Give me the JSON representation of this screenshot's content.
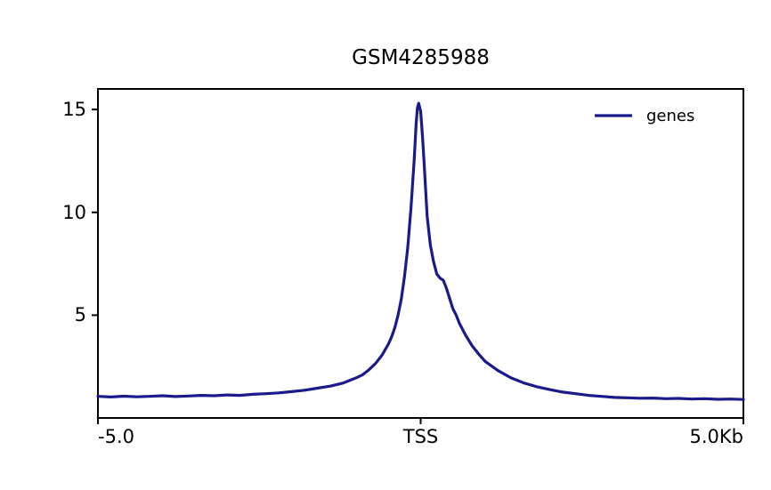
{
  "title": "GSM4285988",
  "legend": {
    "label": "genes"
  },
  "axes": {
    "y_tick_labels": [
      "5",
      "10",
      "15"
    ],
    "x_tick_labels": [
      "-5.0",
      "TSS",
      "5.0Kb"
    ]
  },
  "chart_data": {
    "type": "line",
    "title": "GSM4285988",
    "xlabel": "",
    "ylabel": "",
    "xlim": [
      -5,
      5
    ],
    "ylim": [
      0,
      16
    ],
    "x_tick_positions": [
      -5,
      0,
      5
    ],
    "x_tick_labels": [
      "-5.0",
      "TSS",
      "5.0Kb"
    ],
    "y_ticks": [
      5,
      10,
      15
    ],
    "grid": false,
    "legend_position": "upper right",
    "line_color": "#1a1a8c",
    "series": [
      {
        "name": "genes",
        "x": [
          -5.0,
          -4.8,
          -4.6,
          -4.4,
          -4.2,
          -4.0,
          -3.8,
          -3.6,
          -3.4,
          -3.2,
          -3.0,
          -2.8,
          -2.6,
          -2.4,
          -2.2,
          -2.0,
          -1.8,
          -1.6,
          -1.4,
          -1.2,
          -1.0,
          -0.9,
          -0.8,
          -0.7,
          -0.6,
          -0.5,
          -0.45,
          -0.4,
          -0.35,
          -0.3,
          -0.25,
          -0.2,
          -0.15,
          -0.1,
          -0.07,
          -0.05,
          -0.03,
          0.0,
          0.03,
          0.05,
          0.1,
          0.15,
          0.2,
          0.25,
          0.3,
          0.35,
          0.4,
          0.45,
          0.5,
          0.55,
          0.6,
          0.7,
          0.8,
          0.9,
          1.0,
          1.2,
          1.4,
          1.6,
          1.8,
          2.0,
          2.2,
          2.4,
          2.6,
          2.8,
          3.0,
          3.2,
          3.4,
          3.6,
          3.8,
          4.0,
          4.2,
          4.4,
          4.6,
          4.8,
          5.0
        ],
        "y": [
          1.05,
          1.02,
          1.06,
          1.03,
          1.05,
          1.08,
          1.04,
          1.07,
          1.1,
          1.08,
          1.12,
          1.1,
          1.15,
          1.18,
          1.22,
          1.28,
          1.35,
          1.45,
          1.55,
          1.7,
          1.95,
          2.1,
          2.35,
          2.65,
          3.05,
          3.6,
          3.95,
          4.4,
          5.0,
          5.8,
          6.9,
          8.3,
          10.2,
          12.6,
          14.3,
          15.1,
          15.3,
          14.9,
          13.6,
          12.6,
          9.8,
          8.4,
          7.6,
          7.0,
          6.8,
          6.7,
          6.3,
          5.8,
          5.3,
          5.0,
          4.6,
          4.0,
          3.5,
          3.1,
          2.75,
          2.3,
          1.95,
          1.7,
          1.52,
          1.38,
          1.26,
          1.18,
          1.1,
          1.05,
          1.0,
          0.98,
          0.96,
          0.97,
          0.94,
          0.95,
          0.92,
          0.94,
          0.91,
          0.92,
          0.9
        ]
      }
    ]
  }
}
